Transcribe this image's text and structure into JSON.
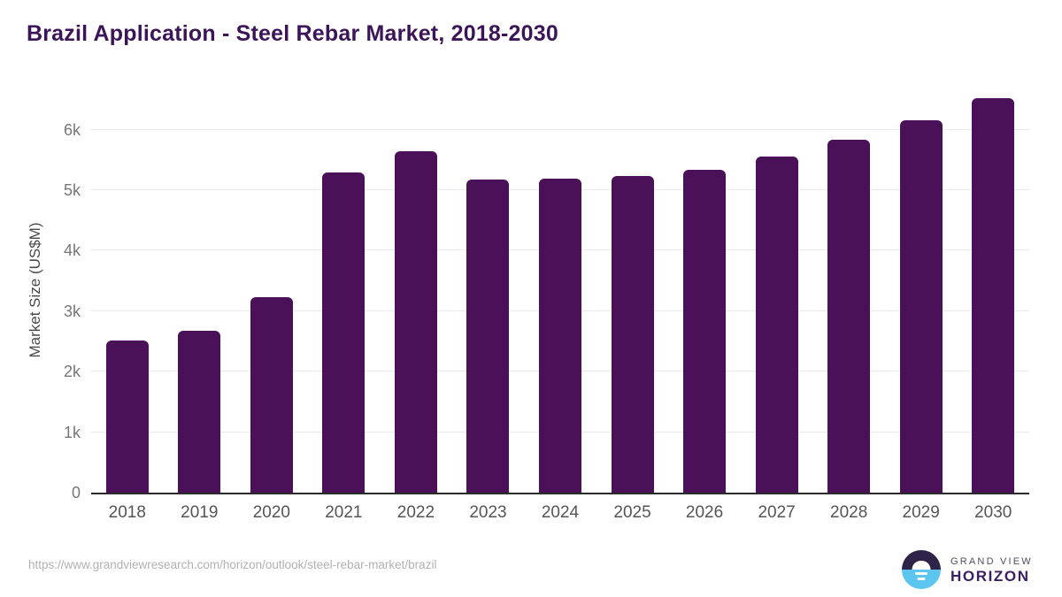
{
  "title": "Brazil Application - Steel Rebar Market, 2018-2030",
  "chart_data": {
    "type": "bar",
    "title": "Brazil Application - Steel Rebar Market, 2018-2030",
    "categories": [
      "2018",
      "2019",
      "2020",
      "2021",
      "2022",
      "2023",
      "2024",
      "2025",
      "2026",
      "2027",
      "2028",
      "2029",
      "2030"
    ],
    "values": [
      2520,
      2680,
      3230,
      5290,
      5650,
      5180,
      5190,
      5230,
      5330,
      5550,
      5830,
      6150,
      6520
    ],
    "xlabel": "",
    "ylabel": "Market Size (US$M)",
    "ylim": [
      0,
      6760
    ],
    "yticks": [
      {
        "value": 0,
        "label": "0"
      },
      {
        "value": 1000,
        "label": "1k"
      },
      {
        "value": 2000,
        "label": "2k"
      },
      {
        "value": 3000,
        "label": "3k"
      },
      {
        "value": 4000,
        "label": "4k"
      },
      {
        "value": 5000,
        "label": "5k"
      },
      {
        "value": 6000,
        "label": "6k"
      }
    ],
    "grid": "horizontal",
    "legend": "none",
    "bar_color": "#4a1158"
  },
  "colors": {
    "title": "#3b1557",
    "bar": "#4a1158",
    "gridline": "#e9e9e9",
    "axis_line": "#2b2b2b",
    "tick_label": "#777777",
    "x_label": "#555555",
    "url_text": "#b3b1b1",
    "logo_dark": "#2e2349",
    "logo_blue": "#5cc5f0"
  },
  "footer": {
    "source_url": "https://www.grandviewresearch.com/horizon/outlook/steel-rebar-market/brazil",
    "logo": {
      "line1": "GRAND VIEW",
      "line2": "HORIZON"
    }
  }
}
